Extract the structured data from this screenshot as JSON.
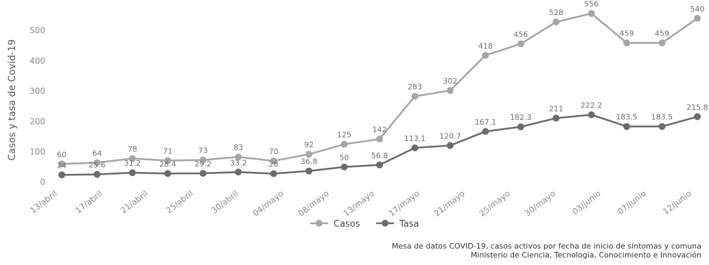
{
  "chart_data": {
    "type": "line",
    "ylabel": "Casos y tasa de Covid-19",
    "ylim": [
      0,
      580
    ],
    "yticks": [
      0,
      100,
      200,
      300,
      400,
      500
    ],
    "grid": false,
    "legend_position": "bottom-center",
    "tick_labels": [
      "13/abril",
      "17/abril",
      "21/abril",
      "25/abril",
      "30/abril",
      "04/mayo",
      "08/mayo",
      "13/mayo",
      "17/mayo",
      "21/mayo",
      "25/mayo",
      "30/mayo",
      "03/junio",
      "07/junio",
      "12/junio"
    ],
    "series": [
      {
        "name": "Casos",
        "color": "#a6a6a6",
        "values": [
          60,
          64,
          78,
          71,
          73,
          83,
          70,
          92,
          125,
          142,
          283,
          302,
          418,
          456,
          528,
          556,
          459,
          459,
          540
        ],
        "labels": [
          "60",
          "64",
          "78",
          "71",
          "73",
          "83",
          "70",
          "92",
          "125",
          "142",
          "283",
          "302",
          "418",
          "456",
          "528",
          "556",
          "459",
          "459",
          "540"
        ]
      },
      {
        "name": "Tasa",
        "color": "#6b6b6b",
        "values": [
          24,
          25.6,
          31.2,
          28.4,
          29.2,
          33.2,
          28,
          36.8,
          50,
          56.8,
          113.1,
          120.7,
          167.1,
          182.3,
          211,
          222.2,
          183.5,
          183.5,
          215.8
        ],
        "labels": [
          "24",
          "25.6",
          "31.2",
          "28.4",
          "29.2",
          "33.2",
          "28",
          "36.8",
          "50",
          "56.8",
          "113.1",
          "120.7",
          "167.1",
          "182.3",
          "211",
          "222.2",
          "183.5",
          "183.5",
          "215.8"
        ]
      }
    ]
  },
  "source": {
    "line1": "Mesa de datos COVID-19, casos activos por fecha de inicio de síntomas y comuna",
    "line2": "Ministerio de Ciencia, Tecnología, Conocimiento e Innovación"
  }
}
